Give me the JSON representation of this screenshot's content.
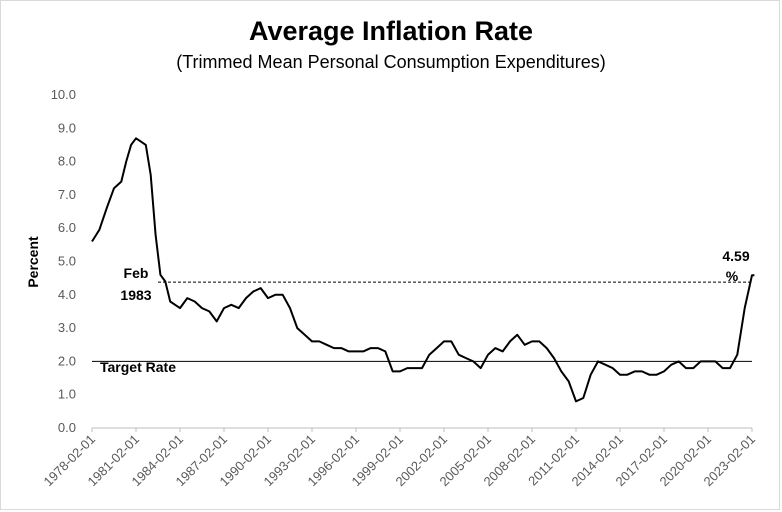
{
  "chart_data": {
    "type": "line",
    "title": "Average Inflation Rate",
    "subtitle": "(Trimmed Mean Personal Consumption Expenditures)",
    "ylabel": "Percent",
    "xlabel": "",
    "ylim": [
      0,
      10
    ],
    "yticks": [
      "0.0",
      "1.0",
      "2.0",
      "3.0",
      "4.0",
      "5.0",
      "6.0",
      "7.0",
      "8.0",
      "9.0",
      "10.0"
    ],
    "xticks": [
      "1978-02-01",
      "1981-02-01",
      "1984-02-01",
      "1987-02-01",
      "1990-02-01",
      "1993-02-01",
      "1996-02-01",
      "1999-02-01",
      "2002-02-01",
      "2005-02-01",
      "2008-02-01",
      "2011-02-01",
      "2014-02-01",
      "2017-02-01",
      "2020-02-01",
      "2023-02-01"
    ],
    "grid": false,
    "series": [
      {
        "x": [
          "1978-02",
          "1978-08",
          "1979-02",
          "1979-08",
          "1980-02",
          "1980-06",
          "1980-10",
          "1981-02",
          "1981-06",
          "1981-10",
          "1982-02",
          "1982-06",
          "1982-10",
          "1983-02",
          "1983-06",
          "1983-10",
          "1984-02",
          "1984-08",
          "1985-02",
          "1985-08",
          "1986-02",
          "1986-08",
          "1987-02",
          "1987-08",
          "1988-02",
          "1988-08",
          "1989-02",
          "1989-08",
          "1990-02",
          "1990-08",
          "1991-02",
          "1991-08",
          "1992-02",
          "1992-08",
          "1993-02",
          "1993-08",
          "1994-02",
          "1994-08",
          "1995-02",
          "1995-08",
          "1996-02",
          "1996-08",
          "1997-02",
          "1997-08",
          "1998-02",
          "1998-08",
          "1999-02",
          "1999-08",
          "2000-02",
          "2000-08",
          "2001-02",
          "2001-08",
          "2002-02",
          "2002-08",
          "2003-02",
          "2003-08",
          "2004-02",
          "2004-08",
          "2005-02",
          "2005-08",
          "2006-02",
          "2006-08",
          "2007-02",
          "2007-08",
          "2008-02",
          "2008-08",
          "2009-02",
          "2009-08",
          "2010-02",
          "2010-08",
          "2011-02",
          "2011-08",
          "2012-02",
          "2012-08",
          "2013-02",
          "2013-08",
          "2014-02",
          "2014-08",
          "2015-02",
          "2015-08",
          "2016-02",
          "2016-08",
          "2017-02",
          "2017-08",
          "2018-02",
          "2018-08",
          "2019-02",
          "2019-08",
          "2020-02",
          "2020-08",
          "2021-02",
          "2021-08",
          "2022-02",
          "2022-08",
          "2023-02",
          "2023-04"
        ],
        "values": [
          5.6,
          5.95,
          6.6,
          7.2,
          7.4,
          8.0,
          8.5,
          8.7,
          8.6,
          8.5,
          7.6,
          5.8,
          4.6,
          4.4,
          3.8,
          3.7,
          3.6,
          3.9,
          3.8,
          3.6,
          3.5,
          3.2,
          3.6,
          3.7,
          3.6,
          3.9,
          4.1,
          4.2,
          3.9,
          4.0,
          4.0,
          3.6,
          3.0,
          2.8,
          2.6,
          2.6,
          2.5,
          2.4,
          2.4,
          2.3,
          2.3,
          2.3,
          2.4,
          2.4,
          2.3,
          1.7,
          1.7,
          1.8,
          1.8,
          1.8,
          2.2,
          2.4,
          2.6,
          2.6,
          2.2,
          2.1,
          2.0,
          1.8,
          2.2,
          2.4,
          2.3,
          2.6,
          2.8,
          2.5,
          2.6,
          2.6,
          2.4,
          2.1,
          1.7,
          1.4,
          0.8,
          0.9,
          1.6,
          2.0,
          1.9,
          1.8,
          1.6,
          1.6,
          1.7,
          1.7,
          1.6,
          1.6,
          1.7,
          1.9,
          2.0,
          1.8,
          1.8,
          2.0,
          2.0,
          2.0,
          1.8,
          1.8,
          2.2,
          3.6,
          4.59,
          4.59
        ]
      }
    ],
    "reference_lines": [
      {
        "label": "Target Rate",
        "y": 2.0,
        "style": "solid"
      },
      {
        "label": "Feb 1983",
        "y": 4.38,
        "style": "dashed"
      }
    ],
    "annotations": [
      {
        "text_line1": "Feb",
        "text_line2": "1983"
      },
      {
        "text_line1": "4.59",
        "text_line2": "%"
      }
    ]
  }
}
